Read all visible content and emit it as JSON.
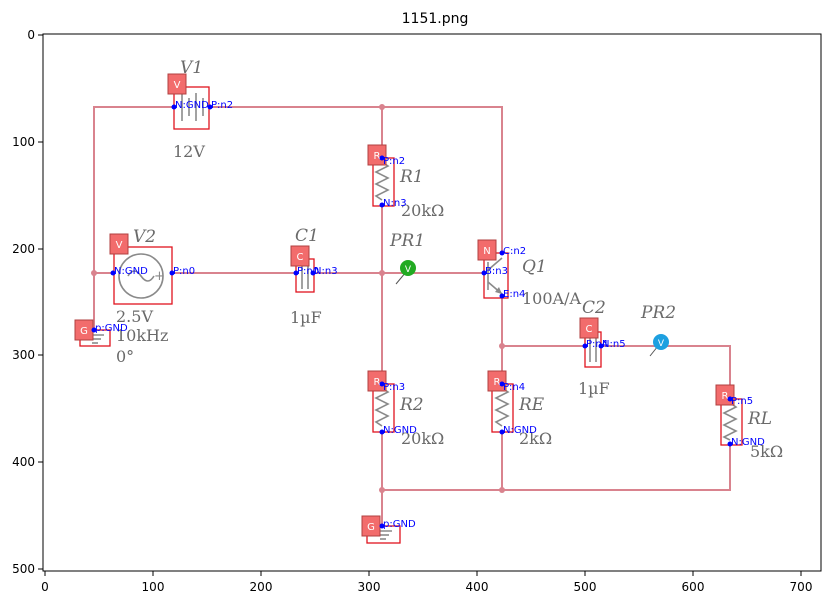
{
  "figure": {
    "title": "1151.png",
    "x_ticks": [
      "0",
      "100",
      "200",
      "300",
      "400",
      "500",
      "600",
      "700"
    ],
    "y_ticks": [
      "0",
      "100",
      "200",
      "300",
      "400",
      "500"
    ]
  },
  "components": {
    "V1": {
      "tag": "V",
      "name": "V1",
      "value": "12V",
      "pin_n": "N:GND",
      "pin_p": "P:n2"
    },
    "V2": {
      "tag": "V",
      "name": "V2",
      "value": "2.5V",
      "freq": "10kHz",
      "phase": "0°",
      "pin_n": "N:GND",
      "pin_p": "P:n0"
    },
    "R1": {
      "tag": "R",
      "name": "R1",
      "value": "20kΩ",
      "pin_p": "P:n2",
      "pin_n": "N:n3"
    },
    "R2": {
      "tag": "R",
      "name": "R2",
      "value": "20kΩ",
      "pin_p": "P:n3",
      "pin_n": "N:GND"
    },
    "C1": {
      "tag": "C",
      "name": "C1",
      "value": "1µF",
      "pin_p": "P:n0",
      "pin_n": "N:n3"
    },
    "Q1": {
      "tag": "N",
      "name": "Q1",
      "value": "100A/A",
      "pin_c": "C:n2",
      "pin_b": "B:n3",
      "pin_e": "E:n4"
    },
    "RE": {
      "tag": "R",
      "name": "RE",
      "value": "2kΩ",
      "pin_p": "P:n4",
      "pin_n": "N:GND"
    },
    "C2": {
      "tag": "C",
      "name": "C2",
      "value": "1µF",
      "pin_p": "P:n4",
      "pin_n": "N:n5"
    },
    "RL": {
      "tag": "R",
      "name": "RL",
      "value": "5kΩ",
      "pin_p": "P:n5",
      "pin_n": "N:GND"
    },
    "G1": {
      "tag": "G",
      "pin": "p:GND"
    },
    "G2": {
      "tag": "G",
      "pin": "p:GND"
    },
    "PR1": {
      "name": "PR1",
      "symbol": "V",
      "color": "#22aa22"
    },
    "PR2": {
      "name": "PR2",
      "symbol": "V",
      "color": "#1ea0e0"
    }
  },
  "colors": {
    "wire": "#d9838e",
    "pin": "#0000ff",
    "tag": "#f26c6c",
    "bbox": "#e0141e"
  }
}
